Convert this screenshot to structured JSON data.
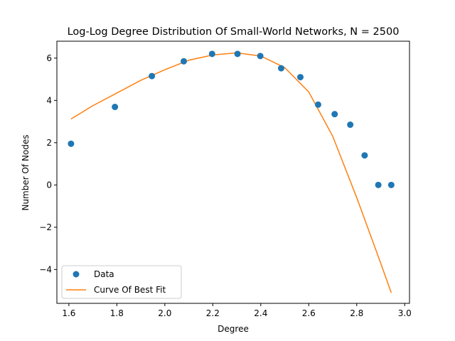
{
  "chart_data": {
    "type": "scatter",
    "title": "Log-Log Degree Distribution Of Small-World Networks, N = 2500",
    "xlabel": "Degree",
    "ylabel": "Number Of Nodes",
    "xlim": [
      1.55,
      3.02
    ],
    "ylim": [
      -5.6,
      6.8
    ],
    "xticks": [
      1.6,
      1.8,
      2.0,
      2.2,
      2.4,
      2.6,
      2.8,
      3.0
    ],
    "xtick_labels": [
      "1.6",
      "1.8",
      "2.0",
      "2.2",
      "2.4",
      "2.6",
      "2.8",
      "3.0"
    ],
    "yticks": [
      -4,
      -2,
      0,
      2,
      4,
      6
    ],
    "ytick_labels": [
      "−4",
      "−2",
      "0",
      "2",
      "4",
      "6"
    ],
    "grid": false,
    "legend_position": "lower-left",
    "series": [
      {
        "name": "Data",
        "kind": "scatter",
        "color": "#1f77b4",
        "x": [
          1.609,
          1.792,
          1.946,
          2.079,
          2.197,
          2.303,
          2.398,
          2.485,
          2.565,
          2.639,
          2.708,
          2.773,
          2.833,
          2.89,
          2.944
        ],
        "y": [
          1.95,
          3.69,
          5.15,
          5.85,
          6.2,
          6.2,
          6.1,
          5.52,
          5.1,
          3.8,
          3.35,
          2.85,
          1.4,
          0.0,
          0.0
        ]
      },
      {
        "name": "Curve Of Best Fit",
        "kind": "line",
        "color": "#ff7f0e",
        "x": [
          1.609,
          1.7,
          1.8,
          1.9,
          2.0,
          2.1,
          2.2,
          2.3,
          2.4,
          2.5,
          2.6,
          2.7,
          2.8,
          2.9,
          2.944
        ],
        "y": [
          3.12,
          3.75,
          4.35,
          4.95,
          5.45,
          5.9,
          6.15,
          6.25,
          6.1,
          5.55,
          4.4,
          2.3,
          -0.6,
          -3.7,
          -5.1
        ]
      }
    ]
  }
}
